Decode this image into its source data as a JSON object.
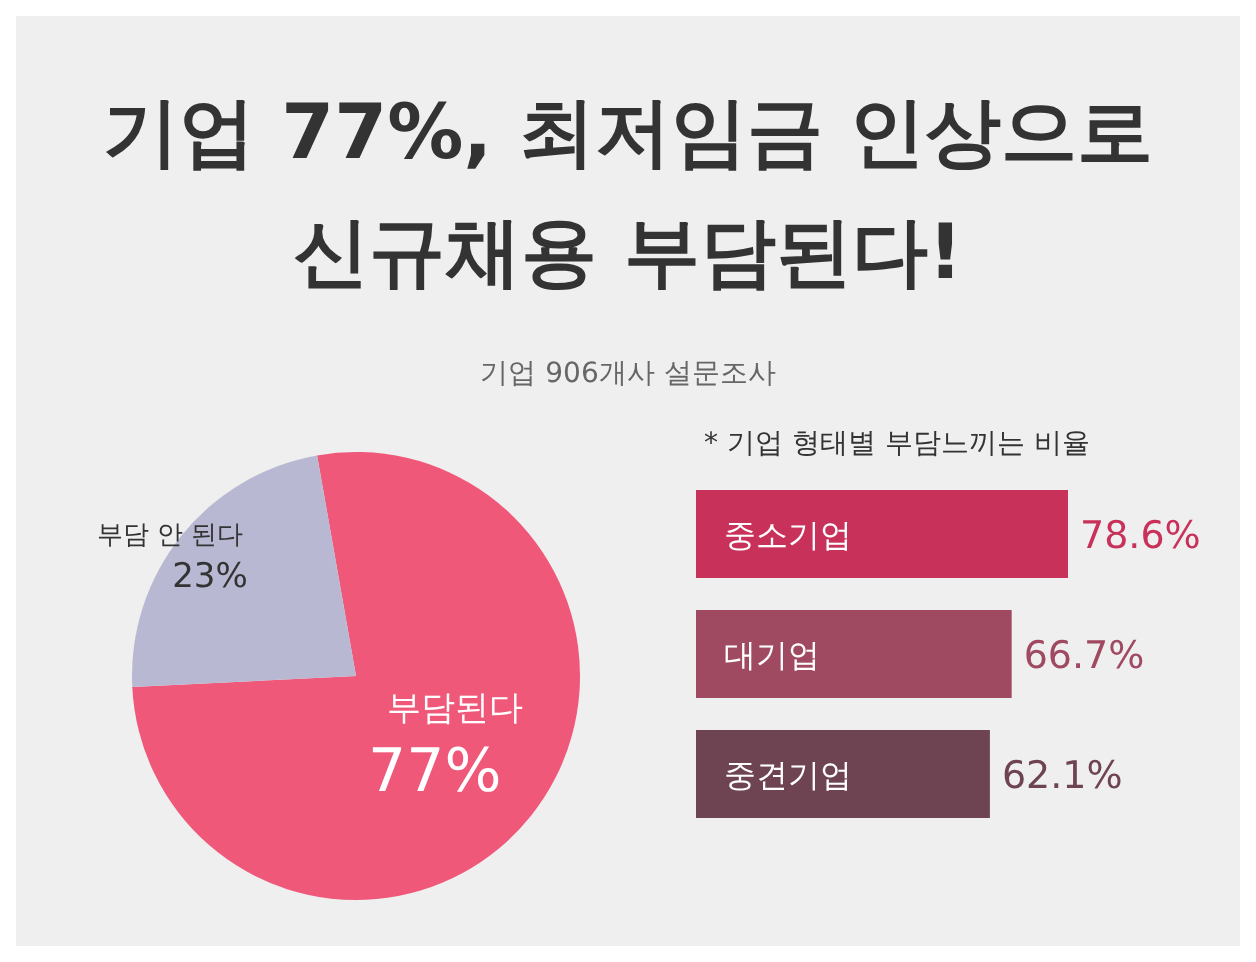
{
  "chart_data": [
    {
      "type": "pie",
      "title": "기업 77%, 최저임금 인상으로 신규채용 부담된다!",
      "subtitle": "기업 906개사 설문조사",
      "categories": [
        "부담된다",
        "부담 안 된다"
      ],
      "values": [
        77,
        23
      ],
      "colors": [
        "#f0587a",
        "#b8b8d2"
      ],
      "value_labels": [
        "77%",
        "23%"
      ]
    },
    {
      "type": "bar",
      "orientation": "horizontal",
      "title": "* 기업 형태별 부담느끼는 비율",
      "categories": [
        "중소기업",
        "대기업",
        "중견기업"
      ],
      "values": [
        78.6,
        66.7,
        62.1
      ],
      "colors": [
        "#c8325a",
        "#a04a62",
        "#6e4452"
      ],
      "value_labels": [
        "78.6%",
        "66.7%",
        "62.1%"
      ]
    }
  ]
}
